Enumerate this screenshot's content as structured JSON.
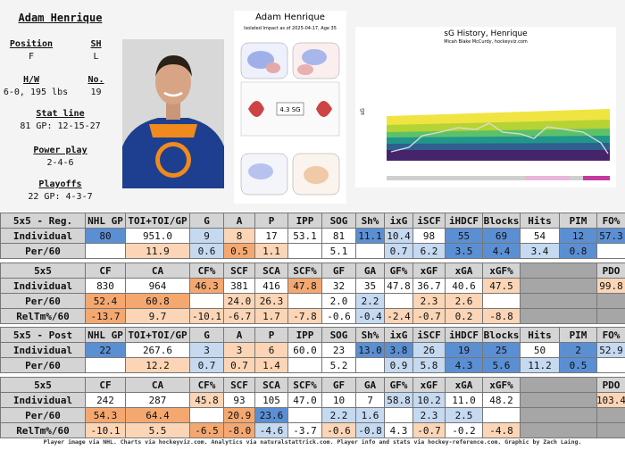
{
  "player": {
    "name": "Adam Henrique",
    "fields": [
      {
        "label": "Position",
        "value": "F"
      },
      {
        "label": "SH",
        "value": "L"
      },
      {
        "label": "H/W",
        "value": "6-0, 195 lbs"
      },
      {
        "label": "No.",
        "value": "19"
      },
      {
        "label": "Stat line",
        "value": "81 GP: 12-15-27"
      },
      {
        "label": "Power play",
        "value": "2-4-6"
      },
      {
        "label": "Playoffs",
        "value": "22 GP: 4-3-7"
      }
    ]
  },
  "impact_chart": {
    "title": "Adam Henrique",
    "subtitle": "Isolated Impact as of 2025-04-17, Age 35",
    "center_label": "4.3 SG"
  },
  "history_chart": {
    "title": "sG History, Henrique",
    "credit": "Micah Blake McCurdy, hockeyviz.com",
    "y_label": "sG"
  },
  "tables": [
    {
      "header": [
        "5x5 - Reg.",
        "NHL GP",
        "TOI+TOI/GP",
        "G",
        "A",
        "P",
        "IPP",
        "SOG",
        "Sh%",
        "ixG",
        "iSCF",
        "iHDCF",
        "Blocks",
        "Hits",
        "PIM",
        "FO%"
      ],
      "rows": [
        {
          "label": "Individual",
          "values": [
            "80",
            "951.0",
            "9",
            "8",
            "17",
            "53.1",
            "81",
            "11.1",
            "10.4",
            "98",
            "55",
            "69",
            "54",
            "12",
            "57.3"
          ],
          "colors": [
            "#5b8fd4",
            null,
            "#c5d9f1",
            "#fbd5b5",
            null,
            null,
            null,
            "#5b8fd4",
            "#c5d9f1",
            null,
            "#5b8fd4",
            "#5b8fd4",
            null,
            "#5b8fd4",
            "#5b8fd4"
          ]
        },
        {
          "label": "Per/60",
          "values": [
            null,
            "11.9",
            "0.6",
            "0.5",
            "1.1",
            null,
            "5.1",
            null,
            "0.7",
            "6.2",
            "3.5",
            "4.4",
            "3.4",
            "0.8",
            null
          ],
          "colors": [
            null,
            "#fbd5b5",
            "#c5d9f1",
            "#f4a870",
            "#fbd5b5",
            null,
            null,
            null,
            "#c5d9f1",
            "#c5d9f1",
            "#5b8fd4",
            "#5b8fd4",
            "#c5d9f1",
            "#5b8fd4",
            null
          ]
        }
      ]
    },
    {
      "header": [
        "5x5",
        "CF",
        "CA",
        "CF%",
        "SCF",
        "SCA",
        "SCF%",
        "GF",
        "GA",
        "GF%",
        "xGF",
        "xGA",
        "xGF%",
        null,
        "PDO"
      ],
      "rows": [
        {
          "label": "Individual",
          "values": [
            "830",
            "964",
            "46.3",
            "381",
            "416",
            "47.8",
            "32",
            "35",
            "47.8",
            "36.7",
            "40.6",
            "47.5",
            null,
            "99.8"
          ],
          "colors": [
            null,
            null,
            "#f4a870",
            null,
            null,
            "#f4a870",
            null,
            null,
            null,
            null,
            null,
            "#fbd5b5",
            "#a6a6a6",
            "#fbd5b5"
          ]
        },
        {
          "label": "Per/60",
          "values": [
            "52.4",
            "60.8",
            null,
            "24.0",
            "26.3",
            null,
            "2.0",
            "2.2",
            null,
            "2.3",
            "2.6",
            null,
            null,
            null
          ],
          "colors": [
            "#f4a870",
            "#f4a870",
            null,
            "#fbd5b5",
            "#fbd5b5",
            null,
            null,
            "#c5d9f1",
            null,
            "#fbd5b5",
            "#fbd5b5",
            null,
            "#a6a6a6",
            "#a6a6a6"
          ]
        },
        {
          "label": "RelTm%/60",
          "values": [
            "-13.7",
            "9.7",
            "-10.1",
            "-6.7",
            "1.7",
            "-7.8",
            "-0.6",
            "-0.4",
            "-2.4",
            "-0.7",
            "0.2",
            "-8.8",
            null,
            null
          ],
          "colors": [
            "#f4a870",
            "#fbd5b5",
            "#fbd5b5",
            "#fbd5b5",
            "#fbd5b5",
            "#fbd5b5",
            null,
            "#c5d9f1",
            "#fbd5b5",
            "#fbd5b5",
            "#fbd5b5",
            "#fbd5b5",
            "#a6a6a6",
            "#a6a6a6"
          ]
        }
      ]
    },
    {
      "header": [
        "5x5 - Post",
        "NHL GP",
        "TOI+TOI/GP",
        "G",
        "A",
        "P",
        "IPP",
        "SOG",
        "Sh%",
        "ixG",
        "iSCF",
        "iHDCF",
        "Blocks",
        "Hits",
        "PIM",
        "FO%"
      ],
      "rows": [
        {
          "label": "Individual",
          "values": [
            "22",
            "267.6",
            "3",
            "3",
            "6",
            "60.0",
            "23",
            "13.0",
            "3.8",
            "26",
            "19",
            "25",
            "50",
            "2",
            "52.9"
          ],
          "colors": [
            "#5b8fd4",
            null,
            "#c5d9f1",
            "#fbd5b5",
            "#fbd5b5",
            null,
            null,
            "#5b8fd4",
            "#5b8fd4",
            "#c5d9f1",
            "#5b8fd4",
            "#5b8fd4",
            null,
            "#5b8fd4",
            "#c5d9f1"
          ]
        },
        {
          "label": "Per/60",
          "values": [
            null,
            "12.2",
            "0.7",
            "0.7",
            "1.4",
            null,
            "5.2",
            null,
            "0.9",
            "5.8",
            "4.3",
            "5.6",
            "11.2",
            "0.5",
            null
          ],
          "colors": [
            null,
            "#fbd5b5",
            "#c5d9f1",
            "#fbd5b5",
            "#fbd5b5",
            null,
            null,
            null,
            "#c5d9f1",
            "#c5d9f1",
            "#5b8fd4",
            "#5b8fd4",
            "#c5d9f1",
            "#5b8fd4",
            null
          ]
        }
      ]
    },
    {
      "header": [
        "5x5",
        "CF",
        "CA",
        "CF%",
        "SCF",
        "SCA",
        "SCF%",
        "GF",
        "GA",
        "GF%",
        "xGF",
        "xGA",
        "xGF%",
        null,
        "PDO"
      ],
      "rows": [
        {
          "label": "Individual",
          "values": [
            "242",
            "287",
            "45.8",
            "93",
            "105",
            "47.0",
            "10",
            "7",
            "58.8",
            "10.2",
            "11.0",
            "48.2",
            null,
            "103.4"
          ],
          "colors": [
            null,
            null,
            "#fbd5b5",
            null,
            null,
            null,
            null,
            null,
            "#c5d9f1",
            "#c5d9f1",
            null,
            null,
            "#a6a6a6",
            "#fbd5b5"
          ]
        },
        {
          "label": "Per/60",
          "values": [
            "54.3",
            "64.4",
            null,
            "20.9",
            "23.6",
            null,
            "2.2",
            "1.6",
            null,
            "2.3",
            "2.5",
            null,
            null,
            null
          ],
          "colors": [
            "#f4a870",
            "#f4a870",
            null,
            "#f4a870",
            "#5b8fd4",
            null,
            "#c5d9f1",
            "#c5d9f1",
            null,
            "#c5d9f1",
            "#c5d9f1",
            null,
            "#a6a6a6",
            "#a6a6a6"
          ]
        },
        {
          "label": "RelTm%/60",
          "values": [
            "-10.1",
            "5.5",
            "-6.5",
            "-8.0",
            "-4.6",
            "-3.7",
            "-0.6",
            "-0.8",
            "4.3",
            "-0.7",
            "-0.2",
            "-4.8",
            null,
            null
          ],
          "colors": [
            "#fbd5b5",
            "#fbd5b5",
            "#f4a870",
            "#f4a870",
            "#c5d9f1",
            null,
            "#fbd5b5",
            "#c5d9f1",
            null,
            "#fbd5b5",
            null,
            "#fbd5b5",
            "#a6a6a6",
            "#a6a6a6"
          ]
        }
      ]
    }
  ],
  "footer": "Player image via NHL. Charts via hockeyviz.com. Analytics via naturalstattrick.com. Player info and stats via hockey-reference.com. Graphic by Zach Laing."
}
